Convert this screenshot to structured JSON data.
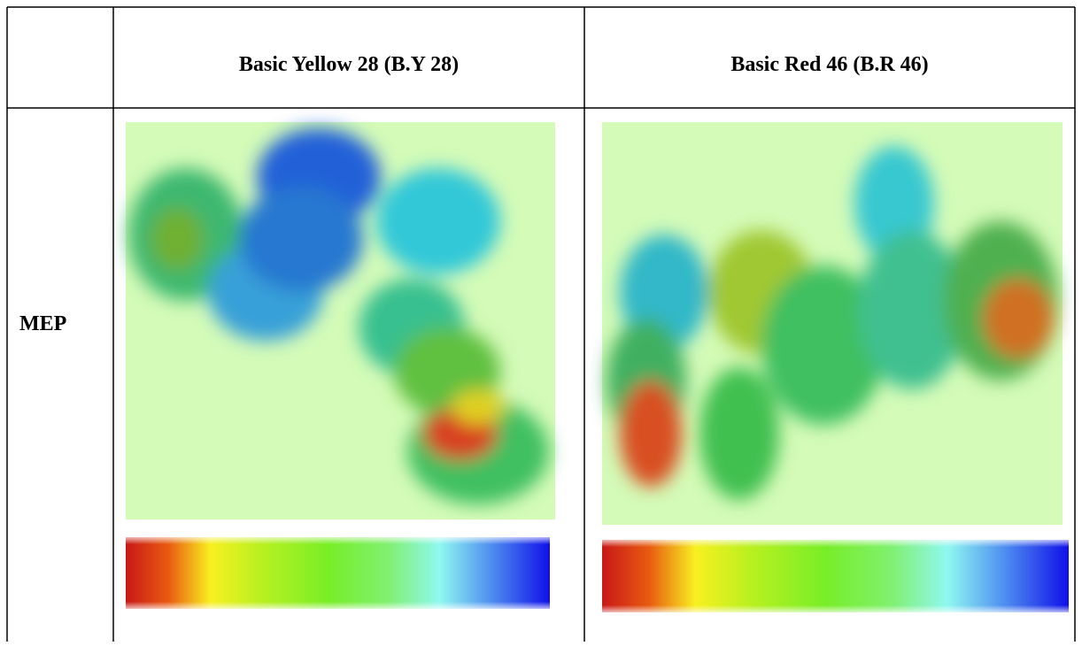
{
  "table": {
    "columns": [
      "Basic Yellow 28 (B.Y 28)",
      "Basic Red 46 (B.R 46)"
    ],
    "rows": [
      {
        "label": "MEP"
      }
    ]
  }
}
